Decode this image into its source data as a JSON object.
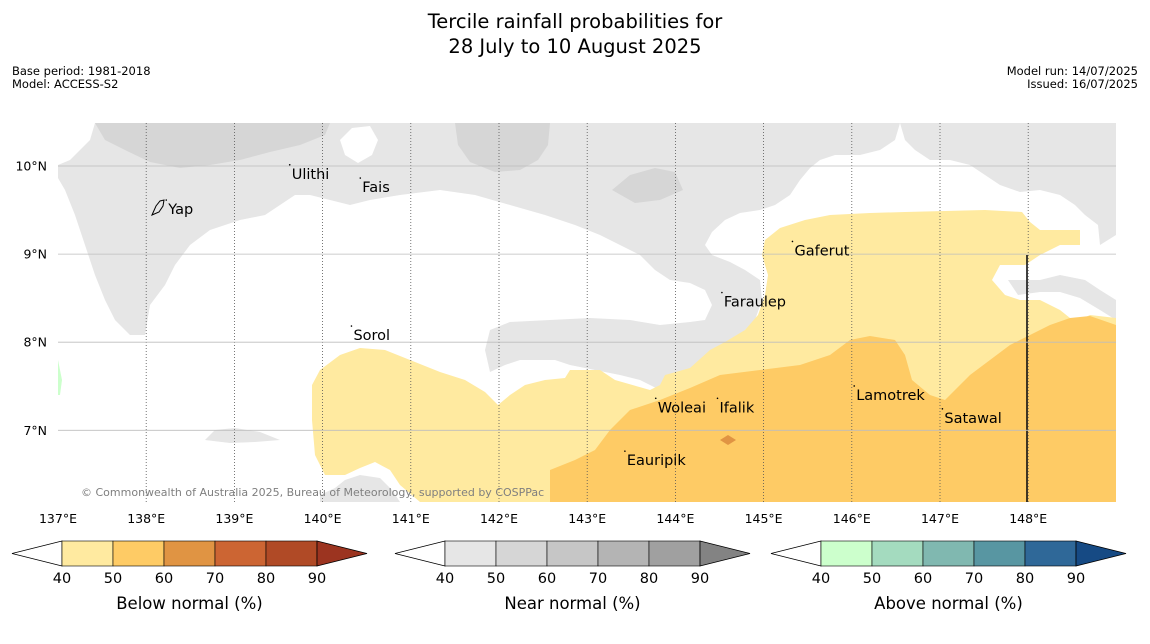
{
  "title_line1": "Tercile rainfall probabilities for",
  "title_line2": "28 July to 10 August 2025",
  "base_period": "Base period: 1981-2018",
  "model": "Model: ACCESS-S2",
  "model_run": "Model run: 14/07/2025",
  "issued": "Issued: 16/07/2025",
  "copyright": "© Commonwealth of Australia 2025, Bureau of Meteorology, supported by COSPPac",
  "map": {
    "lon_range": [
      137,
      149
    ],
    "lat_range": [
      6.3,
      10.5
    ],
    "lon_ticks": [
      "137°E",
      "138°E",
      "139°E",
      "140°E",
      "141°E",
      "142°E",
      "143°E",
      "144°E",
      "145°E",
      "146°E",
      "147°E",
      "148°E"
    ],
    "lat_ticks": [
      "10°N",
      "9°N",
      "8°N",
      "7°N"
    ],
    "places": [
      {
        "name": "Yap",
        "lon": 138.25,
        "lat": 9.5
      },
      {
        "name": "Ulithi",
        "lon": 139.65,
        "lat": 9.9
      },
      {
        "name": "Fais",
        "lon": 140.45,
        "lat": 9.75
      },
      {
        "name": "Sorol",
        "lon": 140.35,
        "lat": 8.07
      },
      {
        "name": "Gaferut",
        "lon": 145.35,
        "lat": 9.03
      },
      {
        "name": "Faraulep",
        "lon": 144.55,
        "lat": 8.45
      },
      {
        "name": "Woleai",
        "lon": 143.8,
        "lat": 7.25
      },
      {
        "name": "Ifalik",
        "lon": 144.5,
        "lat": 7.25
      },
      {
        "name": "Lamotrek",
        "lon": 146.05,
        "lat": 7.39
      },
      {
        "name": "Satawal",
        "lon": 147.05,
        "lat": 7.13
      },
      {
        "name": "Eauripik",
        "lon": 143.45,
        "lat": 6.65
      }
    ]
  },
  "legends": [
    {
      "label": "Below normal (%)",
      "ticks": [
        "40",
        "50",
        "60",
        "70",
        "80",
        "90"
      ],
      "colors": [
        "#ffffff",
        "#ffeaa0",
        "#fecb65",
        "#e09443",
        "#cc6533",
        "#b04a26",
        "#9c3420"
      ]
    },
    {
      "label": "Near normal (%)",
      "ticks": [
        "40",
        "50",
        "60",
        "70",
        "80",
        "90"
      ],
      "colors": [
        "#ffffff",
        "#e6e6e6",
        "#d6d6d6",
        "#c6c6c6",
        "#b4b4b4",
        "#a0a0a0",
        "#838383"
      ]
    },
    {
      "label": "Above normal (%)",
      "ticks": [
        "40",
        "50",
        "60",
        "70",
        "80",
        "90"
      ],
      "colors": [
        "#ffffff",
        "#ccffcc",
        "#a4dbbf",
        "#80b8b0",
        "#5896a2",
        "#2f6898",
        "#164a84"
      ]
    }
  ]
}
